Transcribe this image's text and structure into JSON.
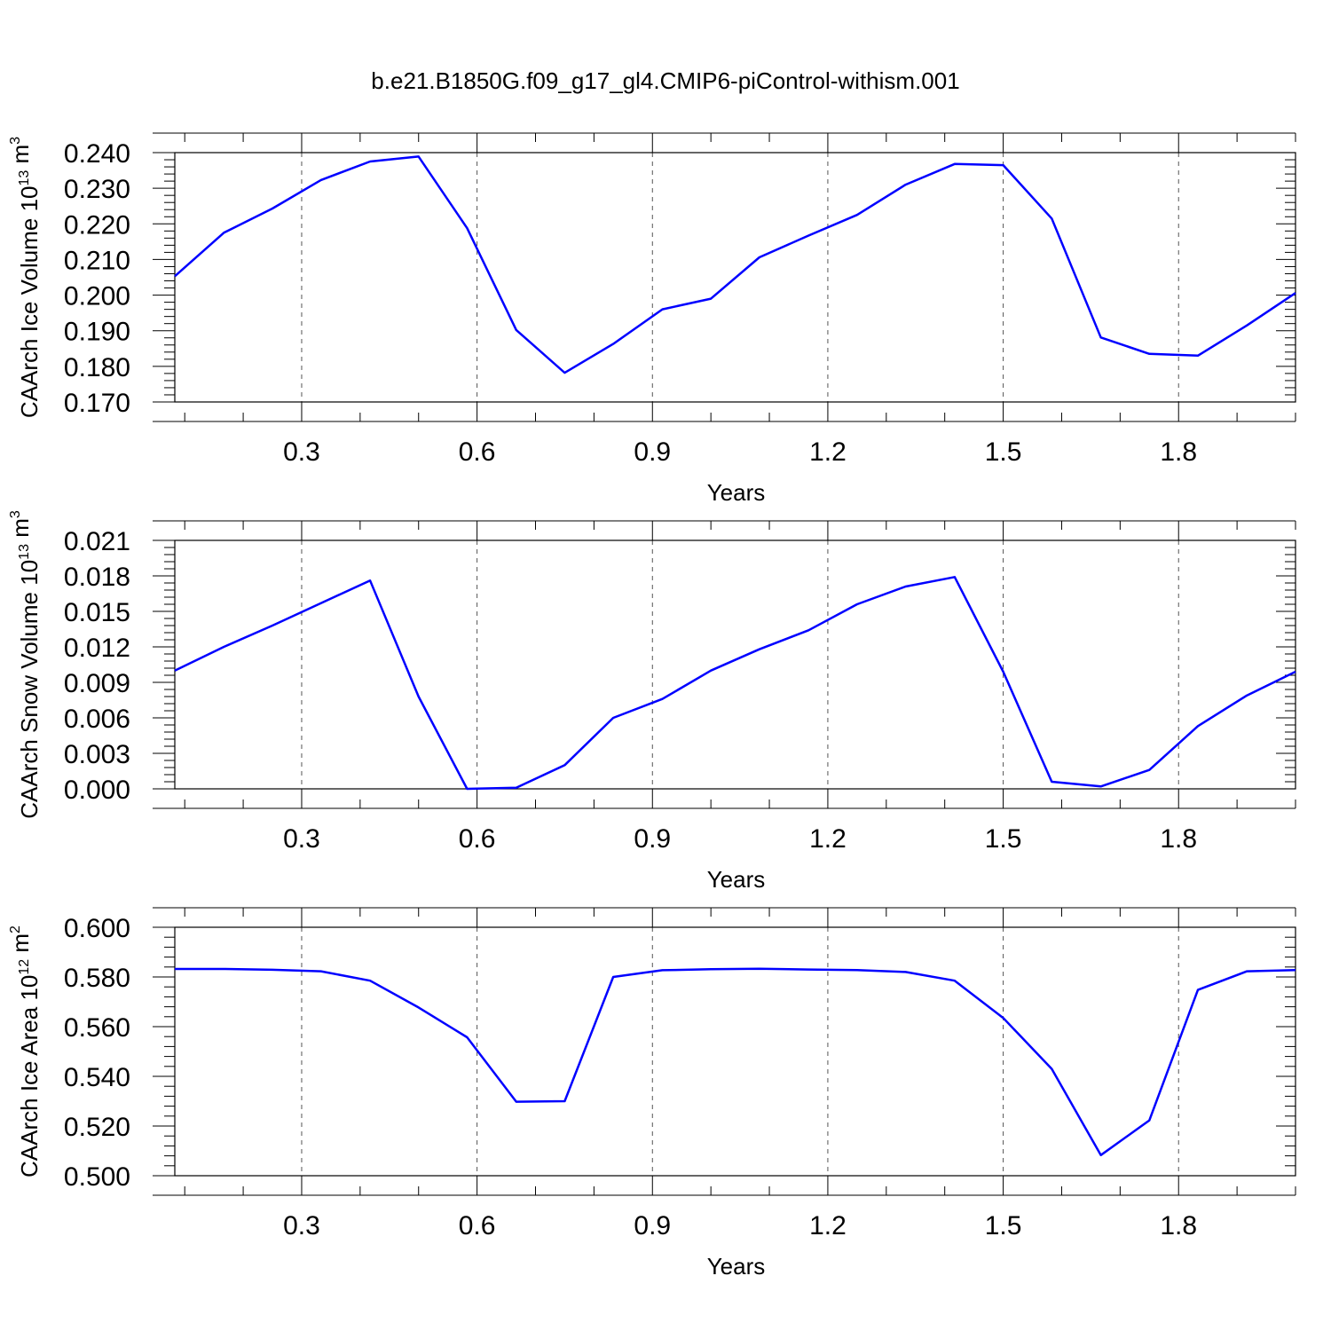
{
  "title": "b.e21.B1850G.f09_g17_gl4.CMIP6-piControl-withism.001",
  "colors": {
    "series": "#0000ff",
    "axis": "#000000",
    "grid": "#555555"
  },
  "chart_data": [
    {
      "type": "line",
      "xlabel": "Years",
      "ylabel": {
        "text": "CAArch Ice Volume 10",
        "sup1": "13",
        "mid": " m",
        "sup2": "3"
      },
      "xlim": [
        0.083,
        2.0
      ],
      "ylim": [
        0.17,
        0.24
      ],
      "xticks": [
        0.3,
        0.6,
        0.9,
        1.2,
        1.5,
        1.8
      ],
      "xtick_labels": [
        "0.3",
        "0.6",
        "0.9",
        "1.2",
        "1.5",
        "1.8"
      ],
      "yticks": [
        0.17,
        0.18,
        0.19,
        0.2,
        0.21,
        0.22,
        0.23,
        0.24
      ],
      "ytick_labels": [
        "0.170",
        "0.180",
        "0.190",
        "0.200",
        "0.210",
        "0.220",
        "0.230",
        "0.240"
      ],
      "grid": "vertical-dashed",
      "x": [
        0.083,
        0.167,
        0.25,
        0.333,
        0.417,
        0.5,
        0.583,
        0.667,
        0.75,
        0.833,
        0.917,
        1.0,
        1.083,
        1.167,
        1.25,
        1.333,
        1.417,
        1.5,
        1.583,
        1.667,
        1.75,
        1.833,
        1.917,
        2.0
      ],
      "values": [
        0.2053,
        0.2175,
        0.2243,
        0.2323,
        0.2375,
        0.2389,
        0.2188,
        0.1902,
        0.1782,
        0.1863,
        0.196,
        0.199,
        0.2106,
        0.2167,
        0.2225,
        0.231,
        0.2368,
        0.2365,
        0.2215,
        0.1881,
        0.1835,
        0.183,
        0.1915,
        0.2006
      ]
    },
    {
      "type": "line",
      "xlabel": "Years",
      "ylabel": {
        "text": "CAArch Snow Volume 10",
        "sup1": "13",
        "mid": " m",
        "sup2": "3"
      },
      "xlim": [
        0.083,
        2.0
      ],
      "ylim": [
        0.0,
        0.021
      ],
      "xticks": [
        0.3,
        0.6,
        0.9,
        1.2,
        1.5,
        1.8
      ],
      "xtick_labels": [
        "0.3",
        "0.6",
        "0.9",
        "1.2",
        "1.5",
        "1.8"
      ],
      "yticks": [
        0.0,
        0.003,
        0.006,
        0.009,
        0.012,
        0.015,
        0.018,
        0.021
      ],
      "ytick_labels": [
        "0.000",
        "0.003",
        "0.006",
        "0.009",
        "0.012",
        "0.015",
        "0.018",
        "0.021"
      ],
      "grid": "vertical-dashed",
      "x": [
        0.083,
        0.167,
        0.25,
        0.333,
        0.417,
        0.5,
        0.583,
        0.667,
        0.75,
        0.833,
        0.917,
        1.0,
        1.083,
        1.167,
        1.25,
        1.333,
        1.417,
        1.5,
        1.583,
        1.667,
        1.75,
        1.833,
        1.917,
        2.0
      ],
      "values": [
        0.01,
        0.012,
        0.0138,
        0.0157,
        0.0176,
        0.0078,
        0.0,
        0.0001,
        0.002,
        0.006,
        0.0076,
        0.01,
        0.0118,
        0.0134,
        0.0156,
        0.0171,
        0.0179,
        0.0099,
        0.0006,
        0.0002,
        0.0016,
        0.0053,
        0.0079,
        0.0099
      ]
    },
    {
      "type": "line",
      "xlabel": "Years",
      "ylabel": {
        "text": "CAArch Ice Area 10",
        "sup1": "12",
        "mid": " m",
        "sup2": "2"
      },
      "xlim": [
        0.083,
        2.0
      ],
      "ylim": [
        0.5,
        0.6
      ],
      "xticks": [
        0.3,
        0.6,
        0.9,
        1.2,
        1.5,
        1.8
      ],
      "xtick_labels": [
        "0.3",
        "0.6",
        "0.9",
        "1.2",
        "1.5",
        "1.8"
      ],
      "yticks": [
        0.5,
        0.52,
        0.54,
        0.56,
        0.58,
        0.6
      ],
      "ytick_labels": [
        "0.500",
        "0.520",
        "0.540",
        "0.560",
        "0.580",
        "0.600"
      ],
      "grid": "vertical-dashed",
      "x": [
        0.083,
        0.167,
        0.25,
        0.333,
        0.417,
        0.5,
        0.583,
        0.667,
        0.75,
        0.833,
        0.917,
        1.0,
        1.083,
        1.167,
        1.25,
        1.333,
        1.417,
        1.5,
        1.583,
        1.667,
        1.75,
        1.833,
        1.917,
        2.0
      ],
      "values": [
        0.5832,
        0.5832,
        0.5829,
        0.5823,
        0.5785,
        0.5677,
        0.5557,
        0.5298,
        0.53,
        0.58,
        0.5827,
        0.5831,
        0.5833,
        0.583,
        0.5828,
        0.582,
        0.5785,
        0.5635,
        0.543,
        0.5083,
        0.5223,
        0.5748,
        0.5823,
        0.5828
      ]
    }
  ]
}
